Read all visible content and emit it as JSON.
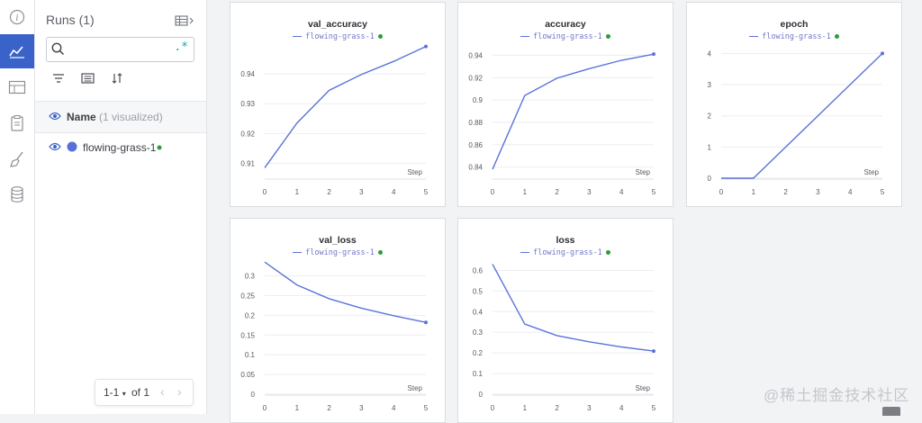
{
  "sidebar_icons": [
    "info-icon",
    "charts-icon",
    "table-icon",
    "clipboard-icon",
    "broom-icon",
    "database-icon"
  ],
  "runs_panel": {
    "title": "Runs (1)",
    "search_placeholder": "",
    "regex_label": ".*",
    "name_header": "Name",
    "name_header_count": "(1 visualized)",
    "runs": [
      {
        "name": "flowing-grass-1",
        "color": "#5b6fd6",
        "status_color": "#2e9c3a"
      }
    ],
    "pager": {
      "range": "1-1",
      "of": "of 1"
    }
  },
  "accent_color": "#3a63c9",
  "watermark": "@稀土掘金技术社区",
  "chart_data": [
    {
      "type": "line",
      "title": "val_accuracy",
      "legend": [
        "flowing-grass-1"
      ],
      "xlabel": "Step",
      "x": [
        0,
        1,
        2,
        3,
        4,
        5
      ],
      "ylim": [
        0.905,
        0.95
      ],
      "yticks": [
        0.91,
        0.92,
        0.93,
        0.94
      ],
      "ytick_labels": [
        "0.91",
        "0.92",
        "0.93",
        "0.94"
      ],
      "series": [
        {
          "name": "flowing-grass-1",
          "values": [
            0.9085,
            0.9235,
            0.9345,
            0.9398,
            0.9442,
            0.9492
          ]
        }
      ]
    },
    {
      "type": "line",
      "title": "accuracy",
      "legend": [
        "flowing-grass-1"
      ],
      "xlabel": "Step",
      "x": [
        0,
        1,
        2,
        3,
        4,
        5
      ],
      "ylim": [
        0.83,
        0.95
      ],
      "yticks": [
        0.84,
        0.86,
        0.88,
        0.9,
        0.92,
        0.94
      ],
      "ytick_labels": [
        "0.84",
        "0.86",
        "0.88",
        "0.9",
        "0.92",
        "0.94"
      ],
      "series": [
        {
          "name": "flowing-grass-1",
          "values": [
            0.838,
            0.904,
            0.9195,
            0.928,
            0.9355,
            0.941
          ]
        }
      ]
    },
    {
      "type": "line",
      "title": "epoch",
      "legend": [
        "flowing-grass-1"
      ],
      "xlabel": "Step",
      "x": [
        0,
        1,
        2,
        3,
        4,
        5
      ],
      "ylim": [
        0,
        4.3
      ],
      "yticks": [
        0,
        1,
        2,
        3,
        4
      ],
      "ytick_labels": [
        "0",
        "1",
        "2",
        "3",
        "4"
      ],
      "series": [
        {
          "name": "flowing-grass-1",
          "values": [
            0,
            0,
            1,
            2,
            3,
            4
          ]
        }
      ]
    },
    {
      "type": "line",
      "title": "val_loss",
      "legend": [
        "flowing-grass-1"
      ],
      "xlabel": "Step",
      "x": [
        0,
        1,
        2,
        3,
        4,
        5
      ],
      "ylim": [
        0,
        0.34
      ],
      "yticks": [
        0,
        0.05,
        0.1,
        0.15,
        0.2,
        0.25,
        0.3
      ],
      "ytick_labels": [
        "0",
        "0.05",
        "0.1",
        "0.15",
        "0.2",
        "0.25",
        "0.3"
      ],
      "series": [
        {
          "name": "flowing-grass-1",
          "values": [
            0.335,
            0.277,
            0.242,
            0.218,
            0.199,
            0.182
          ]
        }
      ]
    },
    {
      "type": "line",
      "title": "loss",
      "legend": [
        "flowing-grass-1"
      ],
      "xlabel": "Step",
      "x": [
        0,
        1,
        2,
        3,
        4,
        5
      ],
      "ylim": [
        0,
        0.65
      ],
      "yticks": [
        0,
        0.1,
        0.2,
        0.3,
        0.4,
        0.5,
        0.6
      ],
      "ytick_labels": [
        "0",
        "0.1",
        "0.2",
        "0.3",
        "0.4",
        "0.5",
        "0.6"
      ],
      "series": [
        {
          "name": "flowing-grass-1",
          "values": [
            0.63,
            0.34,
            0.284,
            0.254,
            0.229,
            0.209
          ]
        }
      ]
    }
  ]
}
